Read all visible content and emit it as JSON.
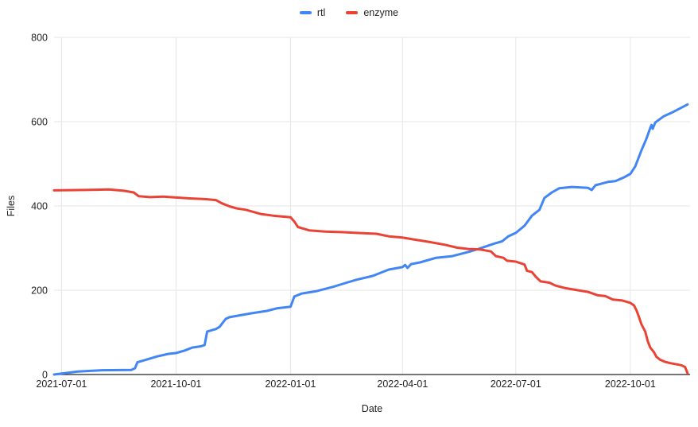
{
  "chart_data": {
    "type": "line",
    "title": "",
    "xlabel": "Date",
    "ylabel": "Files",
    "ylim": [
      0,
      800
    ],
    "y_ticks": [
      0,
      200,
      400,
      600,
      800
    ],
    "x_ticks": [
      "2021-07-01",
      "2021-10-01",
      "2022-01-01",
      "2022-04-01",
      "2022-07-01",
      "2022-10-01"
    ],
    "x_domain": [
      "2021-06-25",
      "2022-11-18"
    ],
    "grid": true,
    "legend_position": "top",
    "axis_color": "#222222",
    "grid_color": "#e6e6e6",
    "series": [
      {
        "name": "rtl",
        "color": "#4285F4",
        "points": [
          [
            "2021-06-25",
            0
          ],
          [
            "2021-07-14",
            7
          ],
          [
            "2021-08-01",
            10
          ],
          [
            "2021-08-26",
            11
          ],
          [
            "2021-08-29",
            15
          ],
          [
            "2021-08-31",
            29
          ],
          [
            "2021-09-08",
            36
          ],
          [
            "2021-09-16",
            43
          ],
          [
            "2021-09-25",
            49
          ],
          [
            "2021-10-01",
            51
          ],
          [
            "2021-10-08",
            57
          ],
          [
            "2021-10-14",
            64
          ],
          [
            "2021-10-21",
            67
          ],
          [
            "2021-10-24",
            70
          ],
          [
            "2021-10-26",
            102
          ],
          [
            "2021-11-02",
            108
          ],
          [
            "2021-11-05",
            113
          ],
          [
            "2021-11-10",
            132
          ],
          [
            "2021-11-13",
            136
          ],
          [
            "2021-11-30",
            145
          ],
          [
            "2021-12-13",
            151
          ],
          [
            "2021-12-21",
            157
          ],
          [
            "2022-01-01",
            161
          ],
          [
            "2022-01-04",
            185
          ],
          [
            "2022-01-10",
            192
          ],
          [
            "2022-01-22",
            198
          ],
          [
            "2022-02-04",
            208
          ],
          [
            "2022-02-14",
            217
          ],
          [
            "2022-02-23",
            225
          ],
          [
            "2022-03-08",
            234
          ],
          [
            "2022-03-21",
            249
          ],
          [
            "2022-04-01",
            255
          ],
          [
            "2022-04-03",
            260
          ],
          [
            "2022-04-05",
            253
          ],
          [
            "2022-04-08",
            262
          ],
          [
            "2022-04-15",
            266
          ],
          [
            "2022-04-28",
            277
          ],
          [
            "2022-05-11",
            281
          ],
          [
            "2022-05-24",
            291
          ],
          [
            "2022-06-01",
            298
          ],
          [
            "2022-06-14",
            311
          ],
          [
            "2022-06-20",
            316
          ],
          [
            "2022-06-25",
            328
          ],
          [
            "2022-07-01",
            336
          ],
          [
            "2022-07-08",
            353
          ],
          [
            "2022-07-14",
            377
          ],
          [
            "2022-07-20",
            391
          ],
          [
            "2022-07-24",
            419
          ],
          [
            "2022-07-30",
            432
          ],
          [
            "2022-08-05",
            442
          ],
          [
            "2022-08-15",
            445
          ],
          [
            "2022-08-28",
            443
          ],
          [
            "2022-08-31",
            438
          ],
          [
            "2022-09-03",
            449
          ],
          [
            "2022-09-13",
            457
          ],
          [
            "2022-09-19",
            459
          ],
          [
            "2022-09-26",
            468
          ],
          [
            "2022-10-01",
            476
          ],
          [
            "2022-10-05",
            494
          ],
          [
            "2022-10-10",
            532
          ],
          [
            "2022-10-14",
            560
          ],
          [
            "2022-10-17",
            585
          ],
          [
            "2022-10-18",
            592
          ],
          [
            "2022-10-19",
            583
          ],
          [
            "2022-10-21",
            598
          ],
          [
            "2022-10-28",
            613
          ],
          [
            "2022-11-03",
            621
          ],
          [
            "2022-11-09",
            630
          ],
          [
            "2022-11-16",
            641
          ]
        ]
      },
      {
        "name": "enzyme",
        "color": "#EA4335",
        "points": [
          [
            "2021-06-25",
            437
          ],
          [
            "2021-07-20",
            438
          ],
          [
            "2021-08-08",
            439
          ],
          [
            "2021-08-20",
            436
          ],
          [
            "2021-08-28",
            432
          ],
          [
            "2021-09-01",
            423
          ],
          [
            "2021-09-10",
            421
          ],
          [
            "2021-09-21",
            422
          ],
          [
            "2021-10-01",
            420
          ],
          [
            "2021-10-12",
            418
          ],
          [
            "2021-10-25",
            416
          ],
          [
            "2021-11-02",
            414
          ],
          [
            "2021-11-07",
            406
          ],
          [
            "2021-11-13",
            399
          ],
          [
            "2021-11-19",
            394
          ],
          [
            "2021-11-26",
            391
          ],
          [
            "2021-12-08",
            381
          ],
          [
            "2021-12-18",
            377
          ],
          [
            "2022-01-01",
            373
          ],
          [
            "2022-01-04",
            363
          ],
          [
            "2022-01-07",
            350
          ],
          [
            "2022-01-16",
            342
          ],
          [
            "2022-01-29",
            339
          ],
          [
            "2022-02-11",
            338
          ],
          [
            "2022-02-23",
            336
          ],
          [
            "2022-03-11",
            334
          ],
          [
            "2022-03-21",
            328
          ],
          [
            "2022-04-01",
            325
          ],
          [
            "2022-04-09",
            321
          ],
          [
            "2022-04-22",
            315
          ],
          [
            "2022-05-05",
            308
          ],
          [
            "2022-05-15",
            301
          ],
          [
            "2022-05-24",
            298
          ],
          [
            "2022-06-02",
            297
          ],
          [
            "2022-06-11",
            292
          ],
          [
            "2022-06-15",
            281
          ],
          [
            "2022-06-21",
            277
          ],
          [
            "2022-06-24",
            270
          ],
          [
            "2022-07-01",
            268
          ],
          [
            "2022-07-08",
            261
          ],
          [
            "2022-07-10",
            246
          ],
          [
            "2022-07-14",
            243
          ],
          [
            "2022-07-17",
            232
          ],
          [
            "2022-07-21",
            221
          ],
          [
            "2022-07-28",
            218
          ],
          [
            "2022-08-02",
            211
          ],
          [
            "2022-08-10",
            205
          ],
          [
            "2022-08-18",
            201
          ],
          [
            "2022-08-28",
            196
          ],
          [
            "2022-09-05",
            188
          ],
          [
            "2022-09-11",
            186
          ],
          [
            "2022-09-17",
            178
          ],
          [
            "2022-09-24",
            176
          ],
          [
            "2022-10-01",
            170
          ],
          [
            "2022-10-04",
            164
          ],
          [
            "2022-10-06",
            152
          ],
          [
            "2022-10-08",
            136
          ],
          [
            "2022-10-10",
            119
          ],
          [
            "2022-10-13",
            102
          ],
          [
            "2022-10-15",
            79
          ],
          [
            "2022-10-17",
            64
          ],
          [
            "2022-10-20",
            53
          ],
          [
            "2022-10-22",
            42
          ],
          [
            "2022-10-25",
            35
          ],
          [
            "2022-10-29",
            30
          ],
          [
            "2022-11-02",
            27
          ],
          [
            "2022-11-06",
            25
          ],
          [
            "2022-11-11",
            22
          ],
          [
            "2022-11-14",
            18
          ],
          [
            "2022-11-16",
            3
          ]
        ]
      }
    ]
  }
}
